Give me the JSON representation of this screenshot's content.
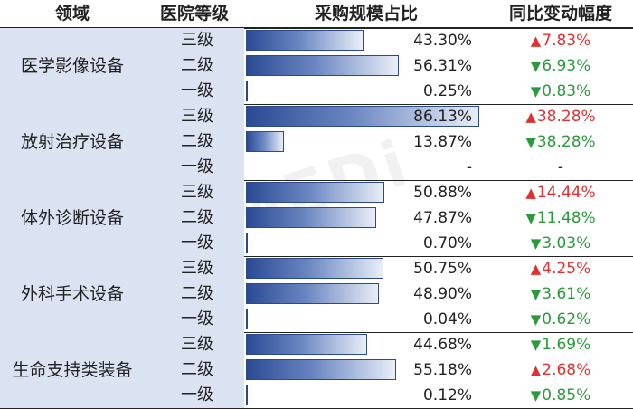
{
  "chart_data": {
    "type": "table",
    "columns": [
      "领域",
      "医院等级",
      "采购规模占比",
      "同比变动幅度"
    ],
    "rows": [
      {
        "domain": "医学影像设备",
        "levels": [
          {
            "level": "三级",
            "share": 43.3,
            "share_text": "43.30%",
            "direction": "up",
            "change_text": "7.83%"
          },
          {
            "level": "二级",
            "share": 56.31,
            "share_text": "56.31%",
            "direction": "down",
            "change_text": "6.93%"
          },
          {
            "level": "一级",
            "share": 0.25,
            "share_text": "0.25%",
            "direction": "down",
            "change_text": "0.83%"
          }
        ]
      },
      {
        "domain": "放射治疗设备",
        "levels": [
          {
            "level": "三级",
            "share": 86.13,
            "share_text": "86.13%",
            "direction": "up",
            "change_text": "38.28%"
          },
          {
            "level": "二级",
            "share": 13.87,
            "share_text": "13.87%",
            "direction": "down",
            "change_text": "38.28%"
          },
          {
            "level": "一级",
            "share": null,
            "share_text": "-",
            "direction": "none",
            "change_text": "-"
          }
        ]
      },
      {
        "domain": "体外诊断设备",
        "levels": [
          {
            "level": "三级",
            "share": 50.88,
            "share_text": "50.88%",
            "direction": "up",
            "change_text": "14.44%"
          },
          {
            "level": "二级",
            "share": 47.87,
            "share_text": "47.87%",
            "direction": "down",
            "change_text": "11.48%"
          },
          {
            "level": "一级",
            "share": 0.7,
            "share_text": "0.70%",
            "direction": "down",
            "change_text": "3.03%"
          }
        ]
      },
      {
        "domain": "外科手术设备",
        "levels": [
          {
            "level": "三级",
            "share": 50.75,
            "share_text": "50.75%",
            "direction": "up",
            "change_text": "4.25%"
          },
          {
            "level": "二级",
            "share": 48.9,
            "share_text": "48.90%",
            "direction": "down",
            "change_text": "3.61%"
          },
          {
            "level": "一级",
            "share": 0.04,
            "share_text": "0.04%",
            "direction": "down",
            "change_text": "0.62%"
          }
        ]
      },
      {
        "domain": "生命支持类装备",
        "levels": [
          {
            "level": "三级",
            "share": 44.68,
            "share_text": "44.68%",
            "direction": "down",
            "change_text": "1.69%"
          },
          {
            "level": "二级",
            "share": 55.18,
            "share_text": "55.18%",
            "direction": "up",
            "change_text": "2.68%"
          },
          {
            "level": "一级",
            "share": 0.12,
            "share_text": "0.12%",
            "direction": "down",
            "change_text": "0.85%"
          }
        ]
      }
    ],
    "share_scale_max": 100,
    "colors": {
      "up": "#e03131",
      "down": "#2a9a3a",
      "domain_bg": "#dbe3f3",
      "bar": "#2b4a94"
    },
    "watermark": "MEDi"
  }
}
